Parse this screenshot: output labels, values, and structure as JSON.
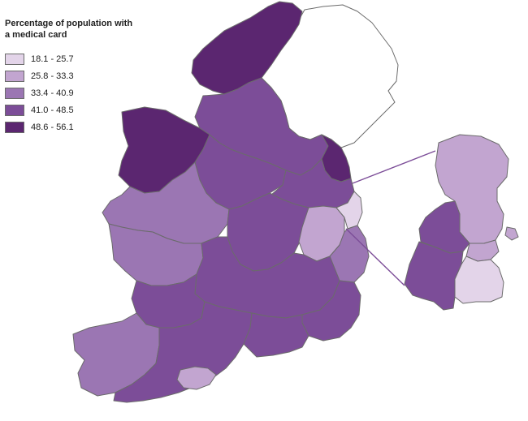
{
  "legend": {
    "title_line1": "Percentage of population with",
    "title_line2": "a medical card",
    "items": [
      {
        "label": "18.1 - 25.7",
        "color": "#e3d4e9"
      },
      {
        "label": "25.8 - 33.3",
        "color": "#c2a5d0"
      },
      {
        "label": "33.4 - 40.9",
        "color": "#9b76b3"
      },
      {
        "label": "41.0 - 48.5",
        "color": "#7c4d98"
      },
      {
        "label": "48.6 - 56.1",
        "color": "#5b2670"
      }
    ]
  },
  "colors": {
    "northern_ireland": "#ffffff",
    "boundary": "#6b6b6b",
    "inset_connector": "#7c4d98"
  }
}
